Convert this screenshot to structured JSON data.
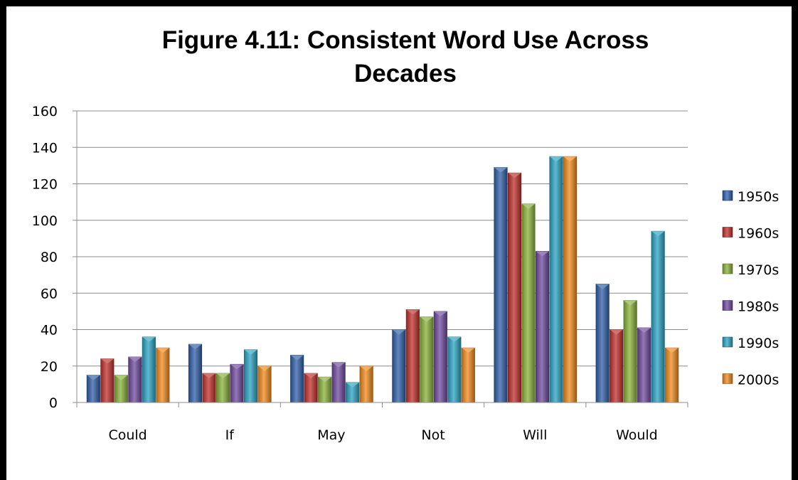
{
  "chart_data": {
    "type": "bar",
    "title": "Figure 4.11: Consistent Word Use Across Decades",
    "title_lines": [
      "Figure 4.11: Consistent Word Use Across",
      "Decades"
    ],
    "categories": [
      "Could",
      "If",
      "May",
      "Not",
      "Will",
      "Would"
    ],
    "series": [
      {
        "name": "1950s",
        "color": "#2f5fa8",
        "values": [
          15,
          32,
          26,
          40,
          129,
          65
        ]
      },
      {
        "name": "1960s",
        "color": "#c0302c",
        "values": [
          24,
          16,
          16,
          51,
          126,
          40
        ]
      },
      {
        "name": "1970s",
        "color": "#8ab13a",
        "values": [
          15,
          16,
          14,
          47,
          109,
          56
        ]
      },
      {
        "name": "1980s",
        "color": "#6f4a9e",
        "values": [
          25,
          21,
          22,
          50,
          83,
          41
        ]
      },
      {
        "name": "1990s",
        "color": "#2ba3c2",
        "values": [
          36,
          29,
          11,
          36,
          135,
          94
        ]
      },
      {
        "name": "2000s",
        "color": "#f08a1c",
        "values": [
          30,
          20,
          20,
          30,
          135,
          30
        ]
      }
    ],
    "y_ticks": [
      "0",
      "20",
      "40",
      "60",
      "80",
      "100",
      "120",
      "140",
      "160"
    ],
    "ylim": [
      0,
      160
    ],
    "xlabel": "",
    "ylabel": "",
    "grid": true,
    "legend_position": "right"
  }
}
